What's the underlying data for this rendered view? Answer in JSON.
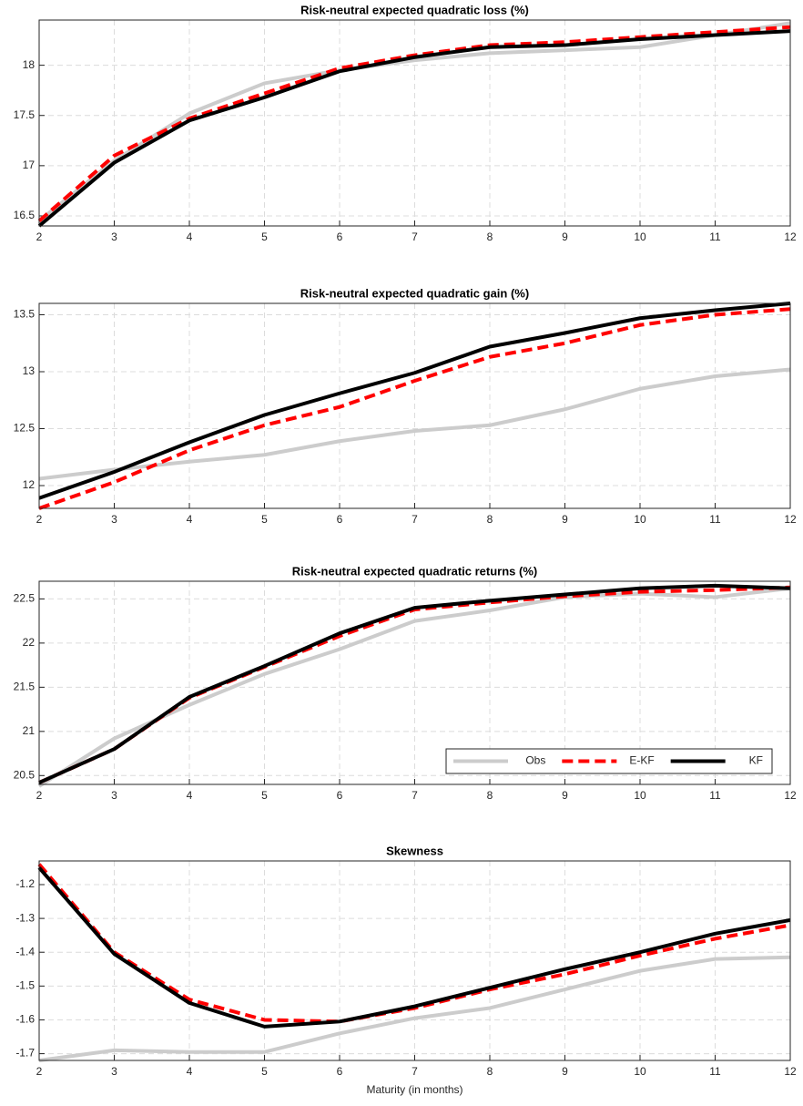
{
  "chart_data": [
    {
      "type": "line",
      "title": "Risk-neutral expected quadratic loss (%)",
      "x": [
        2,
        3,
        4,
        5,
        6,
        7,
        8,
        9,
        10,
        11,
        12
      ],
      "xlim": [
        2,
        12
      ],
      "xticks": [
        2,
        3,
        4,
        5,
        6,
        7,
        8,
        9,
        10,
        11,
        12
      ],
      "ylim": [
        16.4,
        18.45
      ],
      "yticks": [
        16.5,
        17,
        17.5,
        18
      ],
      "grid": true,
      "series": [
        {
          "color": "#cccccc",
          "linestyle": "solid",
          "values": [
            16.45,
            17.05,
            17.52,
            17.82,
            17.95,
            18.05,
            18.12,
            18.15,
            18.18,
            18.3,
            18.42
          ]
        },
        {
          "color": "#ff0000",
          "linestyle": "dashed",
          "values": [
            16.45,
            17.1,
            17.47,
            17.72,
            17.97,
            18.1,
            18.2,
            18.23,
            18.28,
            18.33,
            18.38
          ]
        },
        {
          "color": "#000000",
          "linestyle": "solid",
          "values": [
            16.4,
            17.03,
            17.45,
            17.68,
            17.94,
            18.08,
            18.18,
            18.2,
            18.26,
            18.3,
            18.34
          ]
        }
      ]
    },
    {
      "type": "line",
      "title": "Risk-neutral expected quadratic gain (%)",
      "x": [
        2,
        3,
        4,
        5,
        6,
        7,
        8,
        9,
        10,
        11,
        12
      ],
      "xlim": [
        2,
        12
      ],
      "xticks": [
        2,
        3,
        4,
        5,
        6,
        7,
        8,
        9,
        10,
        11,
        12
      ],
      "ylim": [
        11.8,
        13.6
      ],
      "yticks": [
        12,
        12.5,
        13,
        13.5
      ],
      "grid": true,
      "series": [
        {
          "color": "#cccccc",
          "linestyle": "solid",
          "values": [
            12.06,
            12.14,
            12.21,
            12.27,
            12.39,
            12.48,
            12.53,
            12.67,
            12.85,
            12.96,
            13.02
          ]
        },
        {
          "color": "#ff0000",
          "linestyle": "dashed",
          "values": [
            11.8,
            12.03,
            12.31,
            12.53,
            12.69,
            12.92,
            13.13,
            13.25,
            13.41,
            13.5,
            13.55
          ]
        },
        {
          "color": "#000000",
          "linestyle": "solid",
          "values": [
            11.89,
            12.12,
            12.38,
            12.62,
            12.81,
            12.99,
            13.22,
            13.34,
            13.47,
            13.54,
            13.6
          ]
        }
      ]
    },
    {
      "type": "line",
      "title": "Risk-neutral expected quadratic returns (%)",
      "x": [
        2,
        3,
        4,
        5,
        6,
        7,
        8,
        9,
        10,
        11,
        12
      ],
      "xlim": [
        2,
        12
      ],
      "xticks": [
        2,
        3,
        4,
        5,
        6,
        7,
        8,
        9,
        10,
        11,
        12
      ],
      "ylim": [
        20.4,
        22.7
      ],
      "yticks": [
        20.5,
        21,
        21.5,
        22,
        22.5
      ],
      "grid": true,
      "legend": "southeast",
      "series": [
        {
          "name": "Obs",
          "color": "#cccccc",
          "linestyle": "solid",
          "values": [
            20.38,
            20.92,
            21.3,
            21.65,
            21.93,
            22.25,
            22.37,
            22.52,
            22.56,
            22.52,
            22.62
          ]
        },
        {
          "name": "E-KF",
          "color": "#ff0000",
          "linestyle": "dashed",
          "values": [
            20.42,
            20.8,
            21.38,
            21.73,
            22.08,
            22.38,
            22.46,
            22.53,
            22.58,
            22.6,
            22.63
          ]
        },
        {
          "name": "KF",
          "color": "#000000",
          "linestyle": "solid",
          "values": [
            20.42,
            20.8,
            21.39,
            21.74,
            22.11,
            22.4,
            22.48,
            22.55,
            22.62,
            22.65,
            22.62
          ]
        }
      ]
    },
    {
      "type": "line",
      "title": "Skewness",
      "xlabel": "Maturity (in months)",
      "x": [
        2,
        3,
        4,
        5,
        6,
        7,
        8,
        9,
        10,
        11,
        12
      ],
      "xlim": [
        2,
        12
      ],
      "xticks": [
        2,
        3,
        4,
        5,
        6,
        7,
        8,
        9,
        10,
        11,
        12
      ],
      "ylim": [
        -1.72,
        -1.13
      ],
      "yticks": [
        -1.7,
        -1.6,
        -1.5,
        -1.4,
        -1.3,
        -1.2
      ],
      "grid": true,
      "series": [
        {
          "color": "#cccccc",
          "linestyle": "solid",
          "values": [
            -1.72,
            -1.69,
            -1.695,
            -1.695,
            -1.64,
            -1.595,
            -1.565,
            -1.51,
            -1.455,
            -1.42,
            -1.415
          ]
        },
        {
          "color": "#ff0000",
          "linestyle": "dashed",
          "values": [
            -1.14,
            -1.4,
            -1.54,
            -1.6,
            -1.605,
            -1.565,
            -1.51,
            -1.465,
            -1.41,
            -1.36,
            -1.32
          ]
        },
        {
          "color": "#000000",
          "linestyle": "solid",
          "values": [
            -1.15,
            -1.405,
            -1.55,
            -1.62,
            -1.605,
            -1.56,
            -1.505,
            -1.45,
            -1.4,
            -1.345,
            -1.305
          ]
        }
      ]
    }
  ]
}
